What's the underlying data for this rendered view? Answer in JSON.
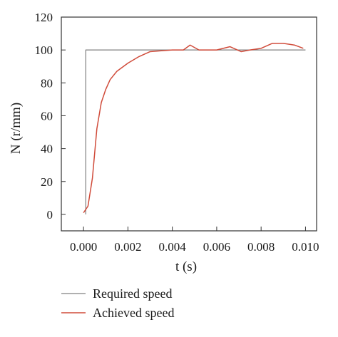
{
  "chart_data": {
    "type": "line",
    "xlabel": "t (s)",
    "ylabel": "N (r/mm)",
    "xlim": [
      -0.001,
      0.0105
    ],
    "ylim": [
      -10,
      120
    ],
    "x_ticks": [
      0.0,
      0.002,
      0.004,
      0.006,
      0.008,
      0.01
    ],
    "x_tick_labels": [
      "0.000",
      "0.002",
      "0.004",
      "0.006",
      "0.008",
      "0.010"
    ],
    "y_ticks": [
      0,
      20,
      40,
      60,
      80,
      100,
      120
    ],
    "y_tick_labels": [
      "0",
      "20",
      "40",
      "60",
      "80",
      "100",
      "120"
    ],
    "grid": false,
    "legend_position": "bottom",
    "series": [
      {
        "name": "Required speed",
        "color": "#808080",
        "x": [
          0.0001,
          0.0001,
          0.01
        ],
        "y": [
          0,
          100,
          100
        ]
      },
      {
        "name": "Achieved speed",
        "color": "#d04b3a",
        "x": [
          0.0,
          0.0002,
          0.0004,
          0.0006,
          0.0008,
          0.001,
          0.0012,
          0.0015,
          0.002,
          0.0025,
          0.003,
          0.0035,
          0.004,
          0.0045,
          0.0048,
          0.0052,
          0.0056,
          0.006,
          0.0066,
          0.0071,
          0.0075,
          0.008,
          0.0085,
          0.009,
          0.0095,
          0.0099
        ],
        "y": [
          1,
          5,
          22,
          52,
          68,
          76,
          82,
          87,
          92,
          96,
          99,
          99.5,
          100,
          100,
          103,
          100,
          100,
          100,
          102,
          99,
          100,
          101,
          104,
          104,
          103,
          101
        ]
      }
    ]
  }
}
